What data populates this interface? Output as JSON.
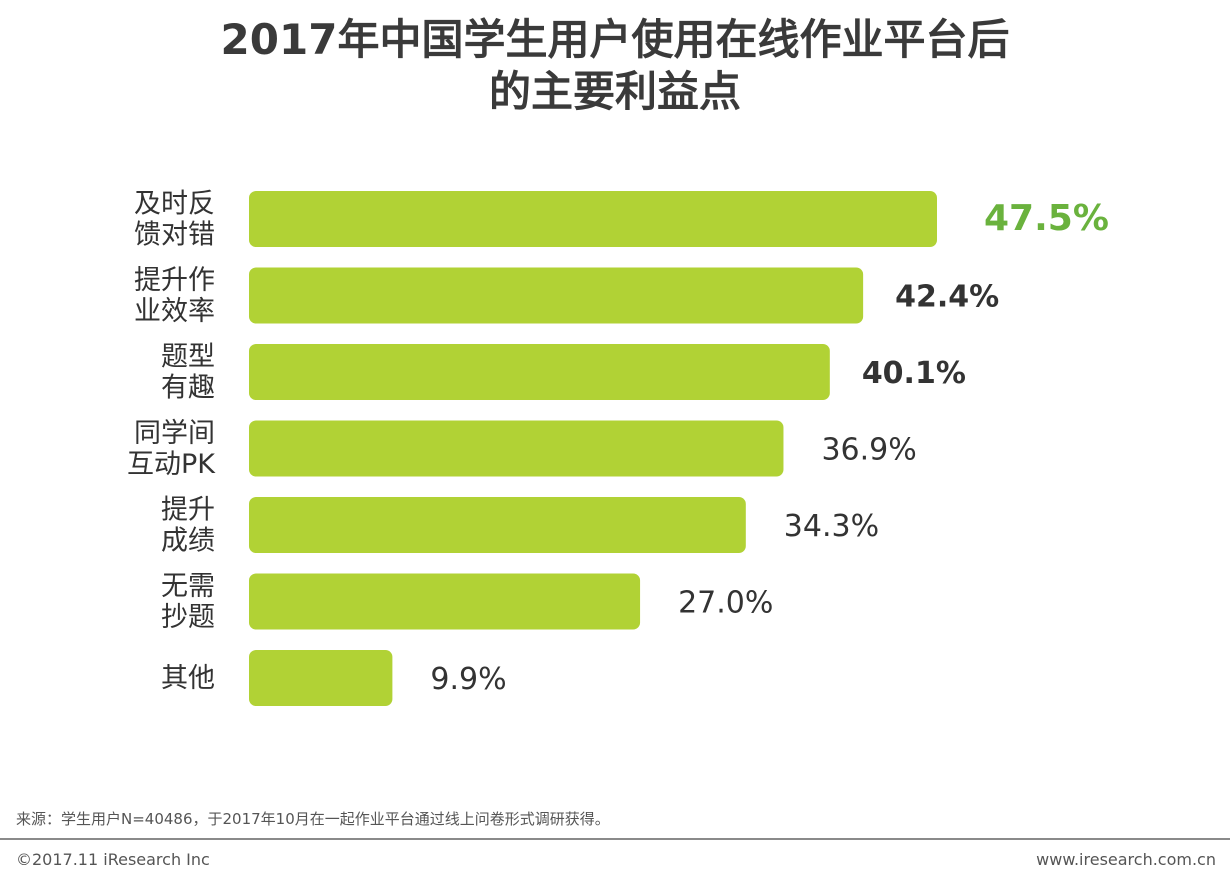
{
  "title": {
    "line1": "2017年中国学生用户使用在线作业平台后",
    "line2": "的主要利益点"
  },
  "chart_data": {
    "type": "bar",
    "orientation": "horizontal",
    "unit": "%",
    "xlim": [
      0,
      50
    ],
    "grid": false,
    "categories": [
      [
        "及时反",
        "馈对错"
      ],
      [
        "提升作",
        "业效率"
      ],
      [
        "题型",
        "有趣"
      ],
      [
        "同学间",
        "互动PK"
      ],
      [
        "提升",
        "成绩"
      ],
      [
        "无需",
        "抄题"
      ],
      [
        "其他"
      ]
    ],
    "values": [
      47.5,
      42.4,
      40.1,
      36.9,
      34.3,
      27.0,
      9.9
    ],
    "value_labels": [
      "47.5%",
      "42.4%",
      "40.1%",
      "36.9%",
      "34.3%",
      "27.0%",
      "9.9%"
    ],
    "label_styles": [
      "highlight",
      "bold",
      "bold",
      "normal",
      "normal",
      "normal",
      "normal"
    ],
    "colors": {
      "bar": "#b1d235",
      "highlight_label": "#6ab23d",
      "label": "#333333"
    }
  },
  "footer": {
    "source_note": "来源：学生用户N=40486，于2017年10月在一起作业平台通过线上问卷形式调研获得。",
    "copyright": "©2017.11 iResearch Inc",
    "website": "www.iresearch.com.cn"
  }
}
